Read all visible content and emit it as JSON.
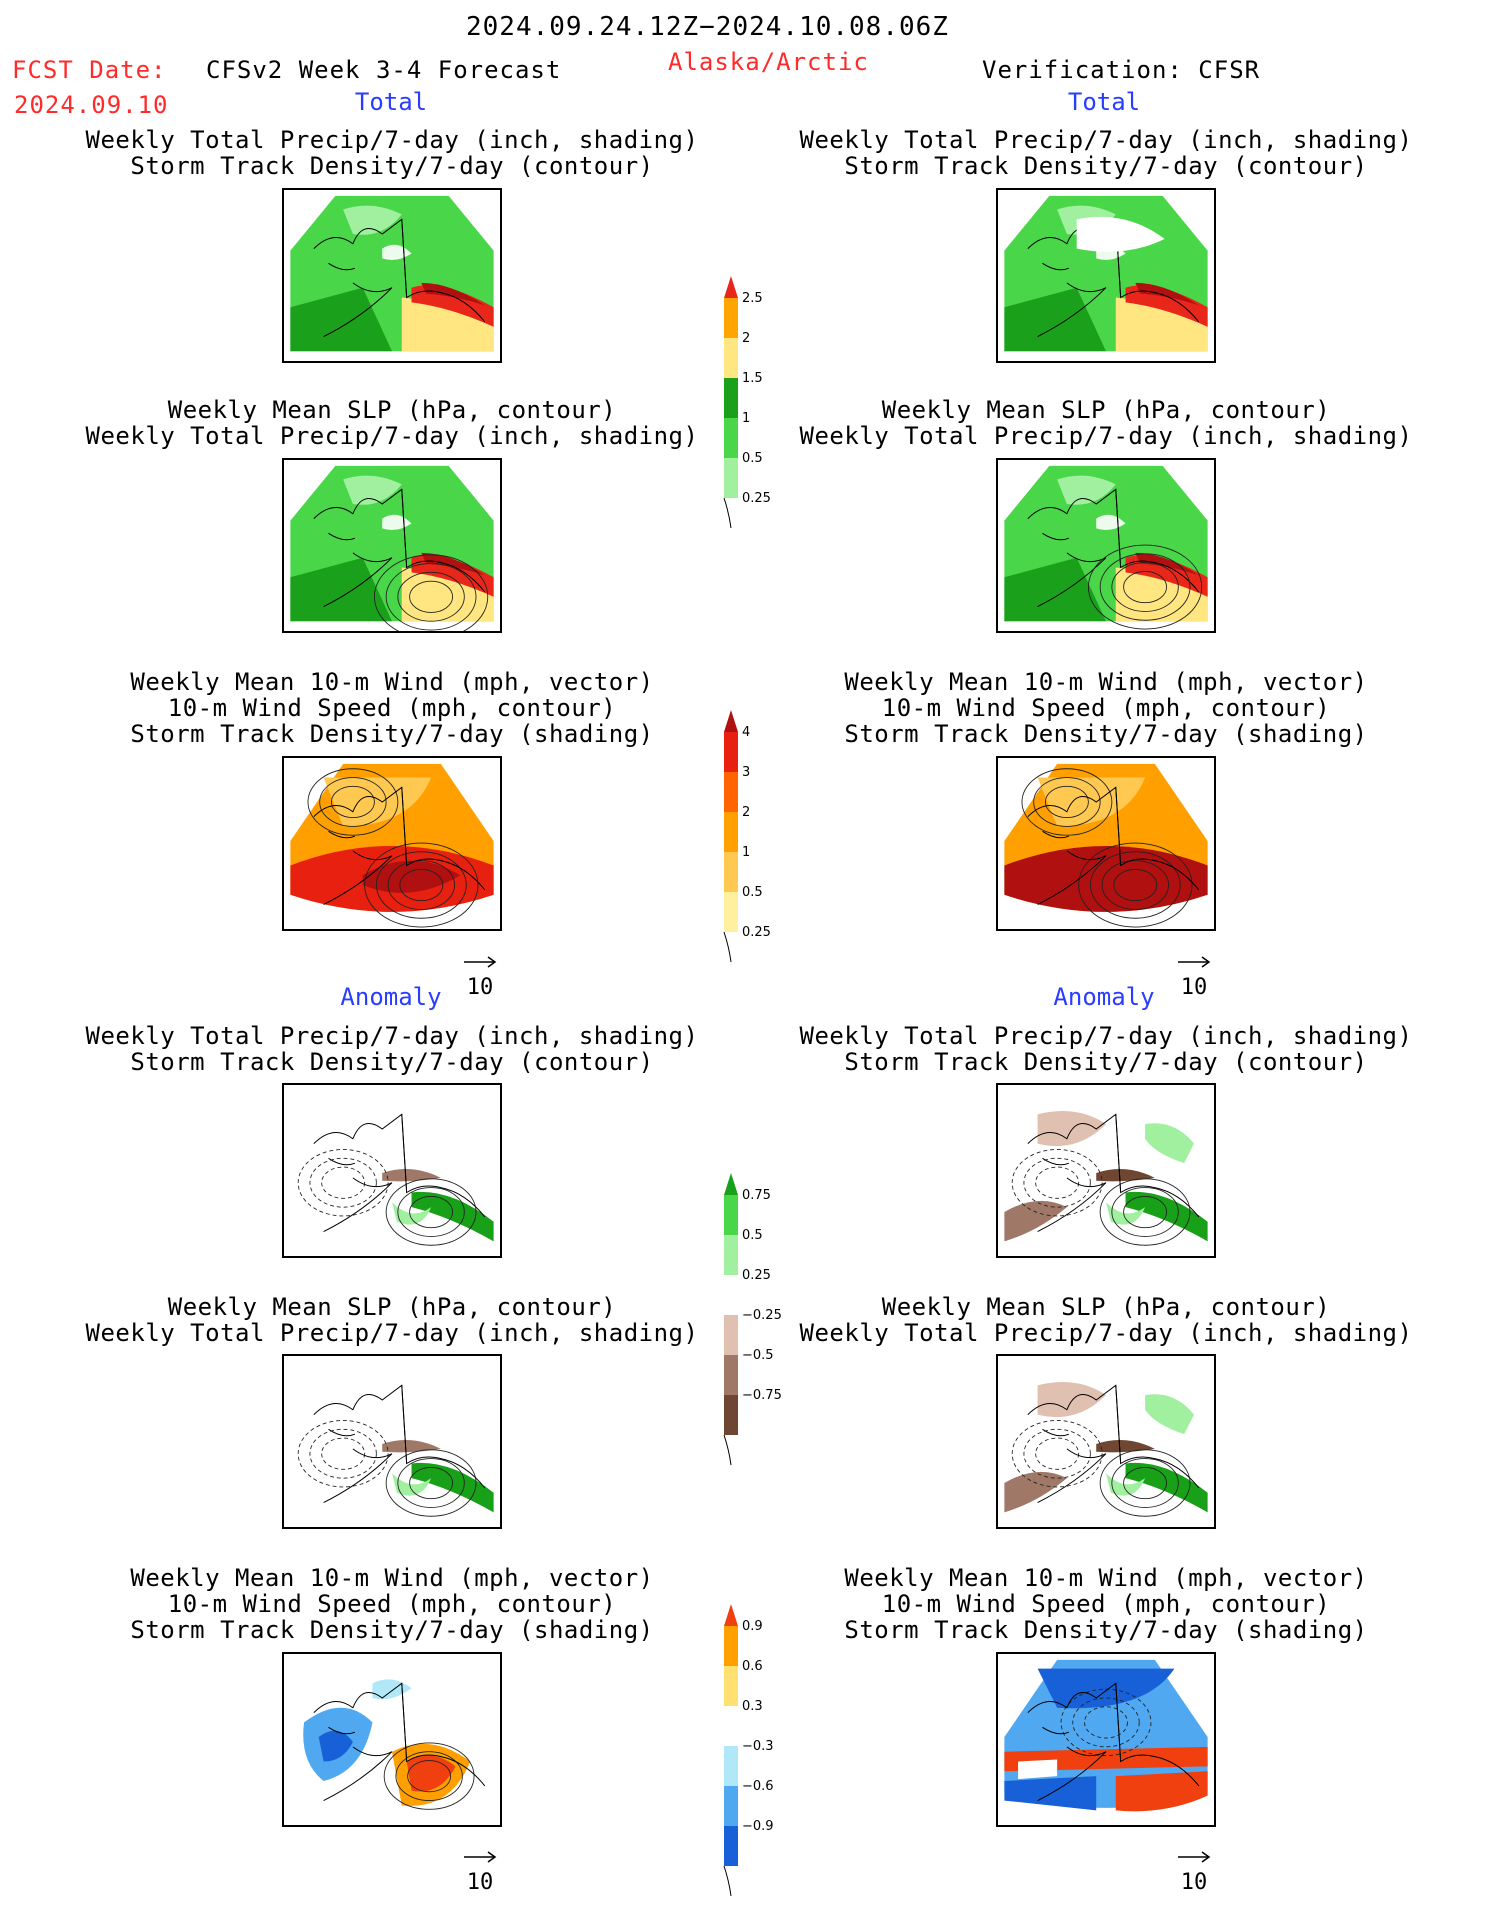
{
  "header": {
    "date_range": "2024.09.24.12Z−2024.10.08.06Z",
    "fcst_label": "FCST Date:",
    "fcst_date": "2024.09.10",
    "forecast_name": "CFSv2 Week 3-4 Forecast",
    "region": "Alaska/Arctic",
    "verification": "Verification: CFSR"
  },
  "sections": {
    "total": "Total",
    "anomaly": "Anomaly"
  },
  "panels": {
    "left_total_1": [
      "Weekly Total Precip/7-day (inch, shading)",
      "Storm Track Density/7-day (contour)"
    ],
    "left_total_2": [
      "Weekly Mean SLP (hPa, contour)",
      "Weekly Total Precip/7-day (inch, shading)"
    ],
    "left_total_3": [
      "Weekly Mean 10-m Wind (mph, vector)",
      "10-m Wind Speed (mph, contour)",
      "Storm Track Density/7-day (shading)"
    ],
    "right_total_1": [
      "Weekly Total Precip/7-day (inch, shading)",
      "Storm Track Density/7-day (contour)"
    ],
    "right_total_2": [
      "Weekly Mean SLP (hPa, contour)",
      "Weekly Total Precip/7-day (inch, shading)"
    ],
    "right_total_3": [
      "Weekly Mean 10-m Wind (mph, vector)",
      "10-m Wind Speed (mph, contour)",
      "Storm Track Density/7-day (shading)"
    ],
    "left_anom_1": [
      "Weekly Total Precip/7-day (inch, shading)",
      "Storm Track Density/7-day (contour)"
    ],
    "left_anom_2": [
      "Weekly Mean SLP (hPa, contour)",
      "Weekly Total Precip/7-day (inch, shading)"
    ],
    "left_anom_3": [
      "Weekly Mean 10-m Wind (mph, vector)",
      "10-m Wind Speed (mph, contour)",
      "Storm Track Density/7-day (shading)"
    ],
    "right_anom_1": [
      "Weekly Total Precip/7-day (inch, shading)",
      "Storm Track Density/7-day (contour)"
    ],
    "right_anom_2": [
      "Weekly Mean SLP (hPa, contour)",
      "Weekly Total Precip/7-day (inch, shading)"
    ],
    "right_anom_3": [
      "Weekly Mean 10-m Wind (mph, vector)",
      "10-m Wind Speed (mph, contour)",
      "Storm Track Density/7-day (shading)"
    ]
  },
  "vector_ref": "10",
  "colorbars": {
    "precip_total": {
      "labels": [
        "2.5",
        "2",
        "1.5",
        "1",
        "0.5",
        "0.25"
      ],
      "colors": [
        "#e8261a",
        "#ffa500",
        "#ffe680",
        "#1aa01a",
        "#49d649",
        "#a0f0a0"
      ]
    },
    "storm_total": {
      "labels": [
        "4",
        "3",
        "2",
        "1",
        "0.5",
        "0.25"
      ],
      "colors": [
        "#b01010",
        "#e82010",
        "#ff6400",
        "#ffa000",
        "#ffc850",
        "#fff0a0"
      ]
    },
    "precip_anom": {
      "labels": [
        "0.75",
        "0.5",
        "0.25",
        "−0.25",
        "−0.5",
        "−0.75"
      ],
      "colors": [
        "#18a018",
        "#49d649",
        "#a0f0a0",
        "#ffffff",
        "#e0c0b0",
        "#a07868",
        "#6e4632"
      ]
    },
    "storm_anom": {
      "labels": [
        "0.9",
        "0.6",
        "0.3",
        "−0.3",
        "−0.6",
        "−0.9"
      ],
      "colors": [
        "#f04010",
        "#ffa000",
        "#ffe070",
        "#ffffff",
        "#b0e8f8",
        "#50a8f0",
        "#1860d8"
      ]
    }
  }
}
